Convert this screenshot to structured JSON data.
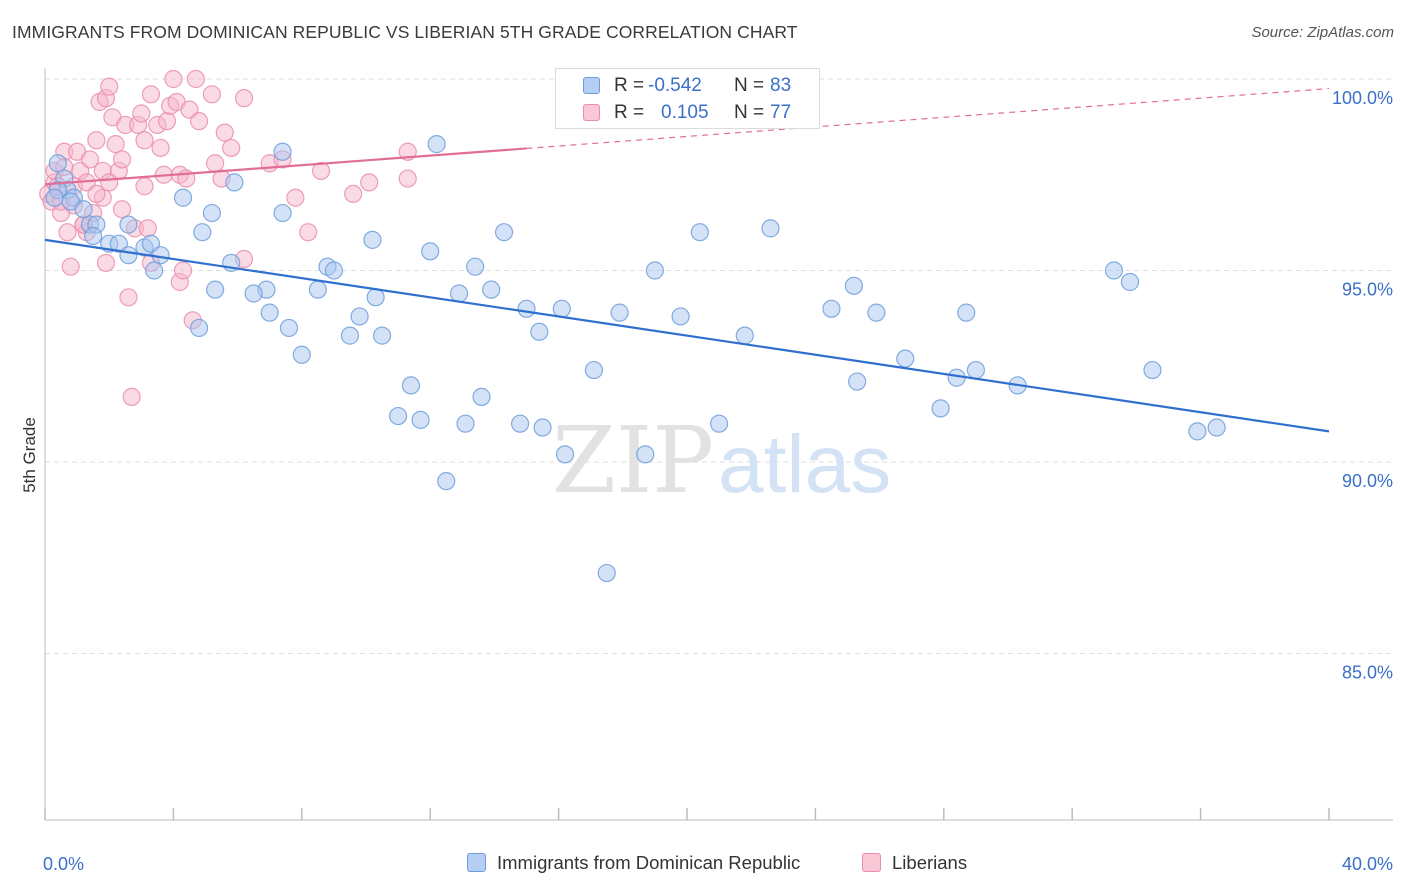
{
  "header": {
    "title": "IMMIGRANTS FROM DOMINICAN REPUBLIC VS LIBERIAN 5TH GRADE CORRELATION CHART",
    "source": "Source: ZipAtlas.com"
  },
  "watermark": {
    "zip": "ZIP",
    "atlas": "atlas"
  },
  "colors": {
    "blue_fill": "#a9c6f0",
    "blue_stroke": "#6e9ddc",
    "blue_line": "#2f6fcf",
    "pink_fill": "#f6b6cb",
    "pink_stroke": "#ea8eac",
    "pink_line": "#e06e96",
    "grid": "#dedede",
    "axis": "#bdbdbd",
    "tick_text": "#3a70c8"
  },
  "legend_stats": [
    {
      "r_label": "R =",
      "r_value": "-0.542",
      "n_label": "N =",
      "n_value": "83"
    },
    {
      "r_label": "R =",
      "r_value": "0.105",
      "n_label": "N =",
      "n_value": "77"
    }
  ],
  "chart_data": {
    "type": "scatter",
    "title": "IMMIGRANTS FROM DOMINICAN REPUBLIC VS LIBERIAN 5TH GRADE CORRELATION CHART",
    "xlabel": "",
    "ylabel": "5th Grade",
    "xlim": [
      0,
      40
    ],
    "ylim": [
      80.5,
      100.6
    ],
    "x_tick_labels": [
      "0.0%",
      "40.0%"
    ],
    "y_ticks": [
      85,
      90,
      95,
      100
    ],
    "y_tick_labels": [
      "85.0%",
      "90.0%",
      "95.0%",
      "100.0%"
    ],
    "grid": true,
    "legend_position": "bottom",
    "series": [
      {
        "name": "Immigrants from Dominican Republic",
        "color": "#a9c6f0",
        "r": -0.542,
        "n": 83,
        "trend": {
          "x": [
            0,
            40
          ],
          "y": [
            95.8,
            90.8
          ],
          "dashed_from": null
        },
        "points": [
          [
            0.4,
            97.8
          ],
          [
            0.6,
            97.4
          ],
          [
            0.7,
            97.1
          ],
          [
            0.9,
            96.9
          ],
          [
            0.4,
            97.1
          ],
          [
            0.3,
            96.9
          ],
          [
            0.8,
            96.8
          ],
          [
            1.2,
            96.6
          ],
          [
            1.4,
            96.2
          ],
          [
            1.6,
            96.2
          ],
          [
            1.5,
            95.9
          ],
          [
            2.0,
            95.7
          ],
          [
            2.3,
            95.7
          ],
          [
            2.6,
            96.2
          ],
          [
            3.1,
            95.6
          ],
          [
            3.3,
            95.7
          ],
          [
            2.6,
            95.4
          ],
          [
            3.6,
            95.4
          ],
          [
            3.4,
            95.0
          ],
          [
            4.3,
            96.9
          ],
          [
            5.2,
            96.5
          ],
          [
            5.9,
            97.3
          ],
          [
            4.9,
            96.0
          ],
          [
            5.8,
            95.2
          ],
          [
            5.3,
            94.5
          ],
          [
            4.8,
            93.5
          ],
          [
            6.9,
            94.5
          ],
          [
            6.5,
            94.4
          ],
          [
            7.0,
            93.9
          ],
          [
            7.4,
            98.1
          ],
          [
            7.4,
            96.5
          ],
          [
            7.6,
            93.5
          ],
          [
            8.0,
            92.8
          ],
          [
            8.5,
            94.5
          ],
          [
            8.8,
            95.1
          ],
          [
            9.0,
            95.0
          ],
          [
            9.8,
            93.8
          ],
          [
            9.5,
            93.3
          ],
          [
            10.2,
            95.8
          ],
          [
            10.3,
            94.3
          ],
          [
            10.5,
            93.3
          ],
          [
            11.0,
            91.2
          ],
          [
            11.4,
            92.0
          ],
          [
            11.7,
            91.1
          ],
          [
            12.0,
            95.5
          ],
          [
            12.2,
            98.3
          ],
          [
            12.5,
            89.5
          ],
          [
            12.9,
            94.4
          ],
          [
            13.1,
            91.0
          ],
          [
            13.4,
            95.1
          ],
          [
            13.6,
            91.7
          ],
          [
            13.9,
            94.5
          ],
          [
            14.3,
            96.0
          ],
          [
            14.8,
            91.0
          ],
          [
            15.0,
            94.0
          ],
          [
            15.4,
            93.4
          ],
          [
            15.5,
            90.9
          ],
          [
            16.1,
            94.0
          ],
          [
            16.2,
            90.2
          ],
          [
            17.1,
            92.4
          ],
          [
            17.5,
            87.1
          ],
          [
            17.9,
            93.9
          ],
          [
            18.7,
            90.2
          ],
          [
            19.0,
            95.0
          ],
          [
            19.8,
            93.8
          ],
          [
            20.4,
            96.0
          ],
          [
            21.0,
            91.0
          ],
          [
            21.8,
            93.3
          ],
          [
            22.6,
            96.1
          ],
          [
            24.5,
            94.0
          ],
          [
            25.2,
            94.6
          ],
          [
            25.3,
            92.1
          ],
          [
            25.9,
            93.9
          ],
          [
            26.8,
            92.7
          ],
          [
            27.9,
            91.4
          ],
          [
            28.4,
            92.2
          ],
          [
            28.7,
            93.9
          ],
          [
            29.0,
            92.4
          ],
          [
            30.3,
            92.0
          ],
          [
            33.3,
            95.0
          ],
          [
            33.8,
            94.7
          ],
          [
            34.5,
            92.4
          ],
          [
            35.9,
            90.8
          ],
          [
            36.5,
            90.9
          ]
        ]
      },
      {
        "name": "Liberians",
        "color": "#f6b6cb",
        "r": 0.105,
        "n": 77,
        "trend": {
          "x": [
            0,
            40
          ],
          "y": [
            97.25,
            99.75
          ],
          "dashed_from": 15.0
        },
        "points": [
          [
            0.1,
            97.0
          ],
          [
            0.2,
            96.8
          ],
          [
            0.3,
            97.3
          ],
          [
            0.3,
            97.6
          ],
          [
            0.4,
            97.2
          ],
          [
            0.5,
            96.5
          ],
          [
            0.6,
            98.1
          ],
          [
            0.6,
            97.7
          ],
          [
            0.7,
            96.0
          ],
          [
            0.8,
            95.1
          ],
          [
            0.9,
            97.2
          ],
          [
            1.0,
            98.1
          ],
          [
            1.1,
            97.6
          ],
          [
            1.2,
            96.2
          ],
          [
            1.3,
            96.0
          ],
          [
            1.3,
            97.3
          ],
          [
            1.4,
            97.9
          ],
          [
            1.5,
            96.5
          ],
          [
            1.6,
            98.4
          ],
          [
            1.7,
            99.4
          ],
          [
            1.8,
            96.9
          ],
          [
            1.8,
            97.6
          ],
          [
            1.9,
            95.2
          ],
          [
            1.9,
            99.5
          ],
          [
            2.0,
            99.8
          ],
          [
            2.1,
            99.0
          ],
          [
            2.2,
            98.3
          ],
          [
            2.3,
            97.6
          ],
          [
            2.4,
            96.6
          ],
          [
            2.4,
            97.9
          ],
          [
            2.5,
            98.8
          ],
          [
            2.6,
            94.3
          ],
          [
            2.7,
            91.7
          ],
          [
            2.8,
            96.1
          ],
          [
            2.9,
            98.8
          ],
          [
            3.0,
            99.1
          ],
          [
            3.1,
            98.4
          ],
          [
            3.1,
            97.2
          ],
          [
            3.2,
            96.1
          ],
          [
            3.3,
            99.6
          ],
          [
            3.3,
            95.2
          ],
          [
            3.5,
            98.8
          ],
          [
            3.6,
            98.2
          ],
          [
            3.7,
            97.5
          ],
          [
            3.8,
            98.9
          ],
          [
            3.9,
            99.3
          ],
          [
            4.0,
            100.0
          ],
          [
            4.1,
            99.4
          ],
          [
            4.2,
            97.5
          ],
          [
            4.2,
            94.7
          ],
          [
            4.3,
            95.0
          ],
          [
            4.4,
            97.4
          ],
          [
            4.5,
            99.2
          ],
          [
            4.6,
            93.7
          ],
          [
            4.7,
            100.0
          ],
          [
            4.8,
            98.9
          ],
          [
            5.2,
            99.6
          ],
          [
            5.3,
            97.8
          ],
          [
            5.5,
            97.4
          ],
          [
            5.6,
            98.6
          ],
          [
            6.2,
            99.5
          ],
          [
            6.2,
            95.3
          ],
          [
            7.0,
            97.8
          ],
          [
            7.4,
            97.9
          ],
          [
            7.8,
            96.9
          ],
          [
            8.2,
            96.0
          ],
          [
            8.6,
            97.6
          ],
          [
            9.6,
            97.0
          ],
          [
            10.1,
            97.3
          ],
          [
            11.3,
            97.4
          ],
          [
            11.3,
            98.1
          ],
          [
            5.8,
            98.2
          ],
          [
            0.9,
            96.7
          ],
          [
            1.2,
            96.2
          ],
          [
            1.6,
            97.0
          ],
          [
            0.5,
            96.8
          ],
          [
            2.0,
            97.3
          ]
        ]
      }
    ]
  }
}
